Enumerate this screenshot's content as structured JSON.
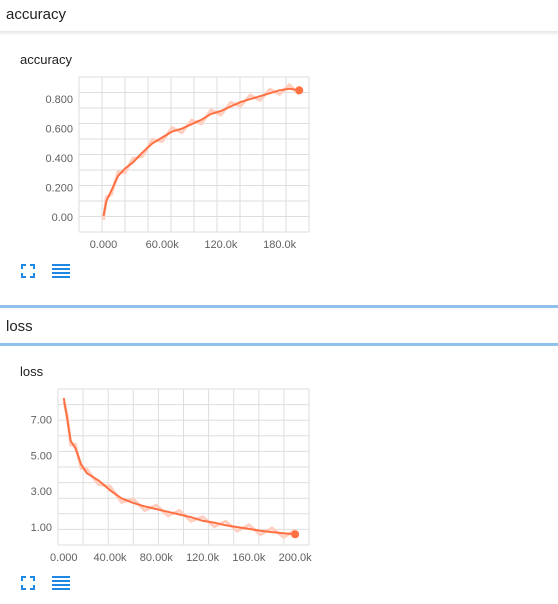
{
  "sections": {
    "accuracy": {
      "header": "accuracy"
    },
    "loss": {
      "header": "loss"
    }
  },
  "colors": {
    "accent": "#ff7043",
    "faint": "#ffcfc1",
    "grid": "#dedede",
    "icon": "#1e88e5",
    "divider": "#8fc1ea"
  },
  "icons": {
    "expand": "fullscreen-icon",
    "data": "data-table-icon"
  },
  "chart_data": [
    {
      "type": "line",
      "title": "accuracy",
      "xlim": [
        -25000,
        210000
      ],
      "ylim": [
        -0.1,
        0.95
      ],
      "x_ticks": [
        0,
        60000,
        120000,
        180000
      ],
      "x_tick_labels": [
        "0.000",
        "60.00k",
        "120.0k",
        "180.0k"
      ],
      "y_ticks": [
        0.0,
        0.2,
        0.4,
        0.6,
        0.8
      ],
      "y_tick_labels": [
        "0.00",
        "0.200",
        "0.400",
        "0.600",
        "0.800"
      ],
      "grid": true,
      "series": [
        {
          "x": [
            0,
            3000,
            8000,
            15000,
            22000,
            30000,
            40000,
            50000,
            60000,
            70000,
            80000,
            90000,
            100000,
            110000,
            120000,
            130000,
            140000,
            150000,
            160000,
            170000,
            180000,
            190000,
            200000
          ],
          "y": [
            0.01,
            0.11,
            0.18,
            0.28,
            0.33,
            0.37,
            0.44,
            0.5,
            0.54,
            0.58,
            0.6,
            0.63,
            0.66,
            0.7,
            0.72,
            0.75,
            0.78,
            0.8,
            0.82,
            0.84,
            0.86,
            0.87,
            0.86
          ]
        }
      ]
    },
    {
      "type": "line",
      "title": "loss",
      "xlim": [
        -5000,
        212000
      ],
      "ylim": [
        0.0,
        8.7
      ],
      "x_ticks": [
        0,
        40000,
        80000,
        120000,
        160000,
        200000
      ],
      "x_tick_labels": [
        "0.000",
        "40.00k",
        "80.00k",
        "120.0k",
        "160.0k",
        "200.0k"
      ],
      "y_ticks": [
        1.0,
        3.0,
        5.0,
        7.0
      ],
      "y_tick_labels": [
        "1.00",
        "3.00",
        "5.00",
        "7.00"
      ],
      "grid": true,
      "series": [
        {
          "x": [
            0,
            3000,
            6000,
            10000,
            15000,
            20000,
            30000,
            40000,
            50000,
            60000,
            70000,
            80000,
            90000,
            100000,
            110000,
            120000,
            130000,
            140000,
            150000,
            160000,
            170000,
            180000,
            190000,
            200000
          ],
          "y": [
            8.2,
            7.0,
            5.8,
            5.4,
            4.5,
            4.0,
            3.6,
            3.05,
            2.6,
            2.35,
            2.15,
            2.0,
            1.85,
            1.7,
            1.55,
            1.35,
            1.25,
            1.1,
            1.0,
            0.9,
            0.8,
            0.72,
            0.65,
            0.6
          ]
        }
      ]
    }
  ]
}
